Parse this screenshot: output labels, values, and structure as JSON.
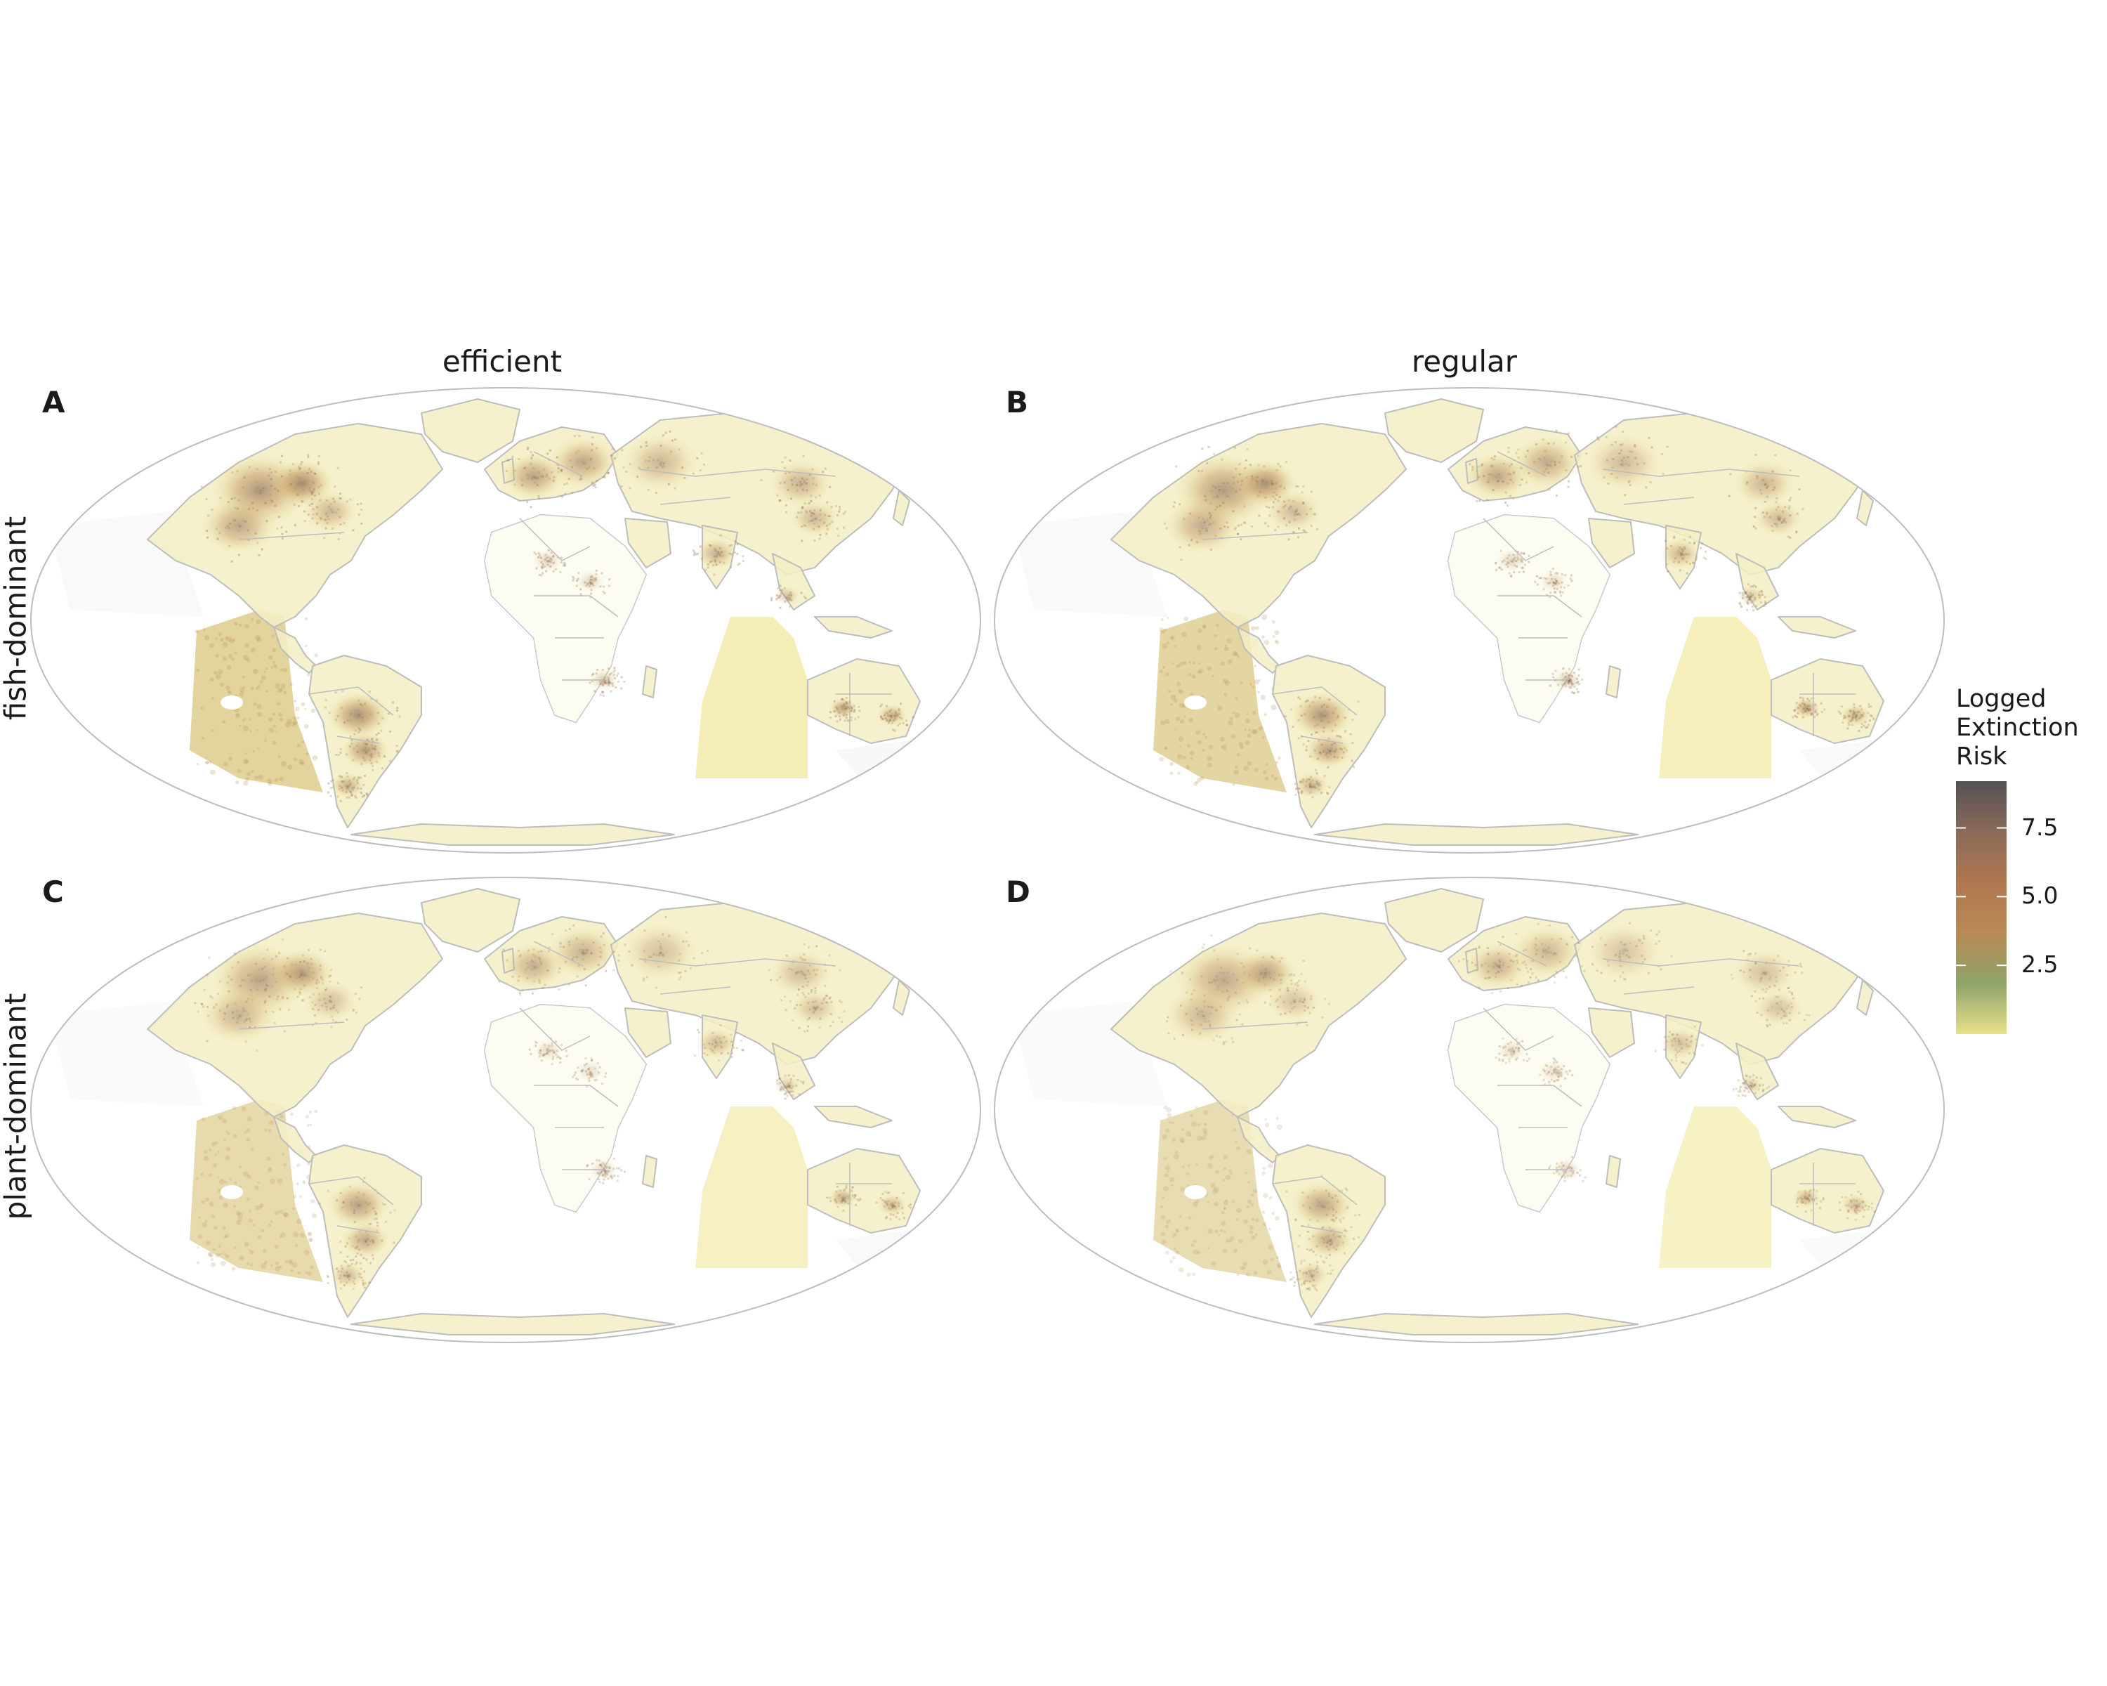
{
  "columns": [
    "efficient",
    "regular"
  ],
  "rows": [
    "fish-dominant",
    "plant-dominant"
  ],
  "panels": [
    {
      "tag": "A",
      "column": "efficient",
      "row": "fish-dominant",
      "intensity": 1.0
    },
    {
      "tag": "B",
      "column": "regular",
      "row": "fish-dominant",
      "intensity": 0.95
    },
    {
      "tag": "C",
      "column": "efficient",
      "row": "plant-dominant",
      "intensity": 0.85
    },
    {
      "tag": "D",
      "column": "regular",
      "row": "plant-dominant",
      "intensity": 0.8
    }
  ],
  "legend": {
    "title_lines": [
      "Logged",
      "Extinction",
      "Risk"
    ],
    "ticks": [
      "7.5",
      "5.0",
      "2.5"
    ],
    "tick_values": [
      7.5,
      5.0,
      2.5
    ],
    "range": [
      0,
      9.2
    ],
    "colors": [
      "#e8e08a",
      "#8fa36a",
      "#b98a55",
      "#b07750",
      "#8a6a58",
      "#555255"
    ]
  },
  "map_style": {
    "outline_color": "#bdbdbd",
    "ocean_tint": "#f6f6f6",
    "land_color": "#ffffff"
  }
}
